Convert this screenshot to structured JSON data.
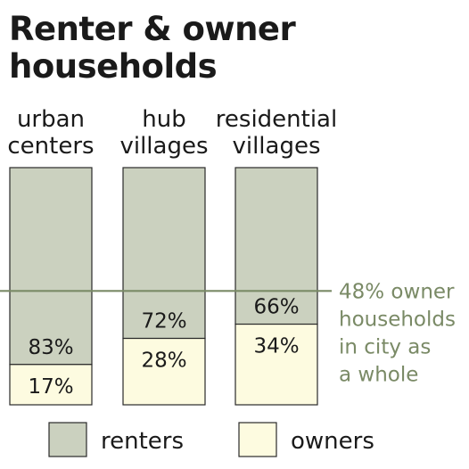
{
  "chart_data": {
    "type": "bar",
    "stacked": true,
    "percent": true,
    "title": [
      "Renter & owner",
      "households"
    ],
    "categories": [
      [
        "urban",
        "centers"
      ],
      [
        "hub",
        "villages"
      ],
      [
        "residential",
        "villages"
      ]
    ],
    "series": [
      {
        "name": "renters",
        "values": [
          83,
          72,
          66
        ]
      },
      {
        "name": "owners",
        "values": [
          17,
          28,
          34
        ]
      }
    ],
    "value_labels": {
      "renters": [
        "83%",
        "72%",
        "66%"
      ],
      "owners": [
        "17%",
        "28%",
        "34%"
      ]
    },
    "ylim": [
      0,
      100
    ],
    "reference_line": {
      "value": 48,
      "label": [
        "48% owner",
        "households",
        "in city as",
        "a whole"
      ]
    },
    "legend_position": "bottom",
    "colors": {
      "renters": "#cbd1bf",
      "owners": "#fdfbe0",
      "border": "#2a2a2a",
      "reference": "#7a8a66",
      "reference_text": "#7a8a66",
      "text": "#1a1a1a"
    }
  }
}
